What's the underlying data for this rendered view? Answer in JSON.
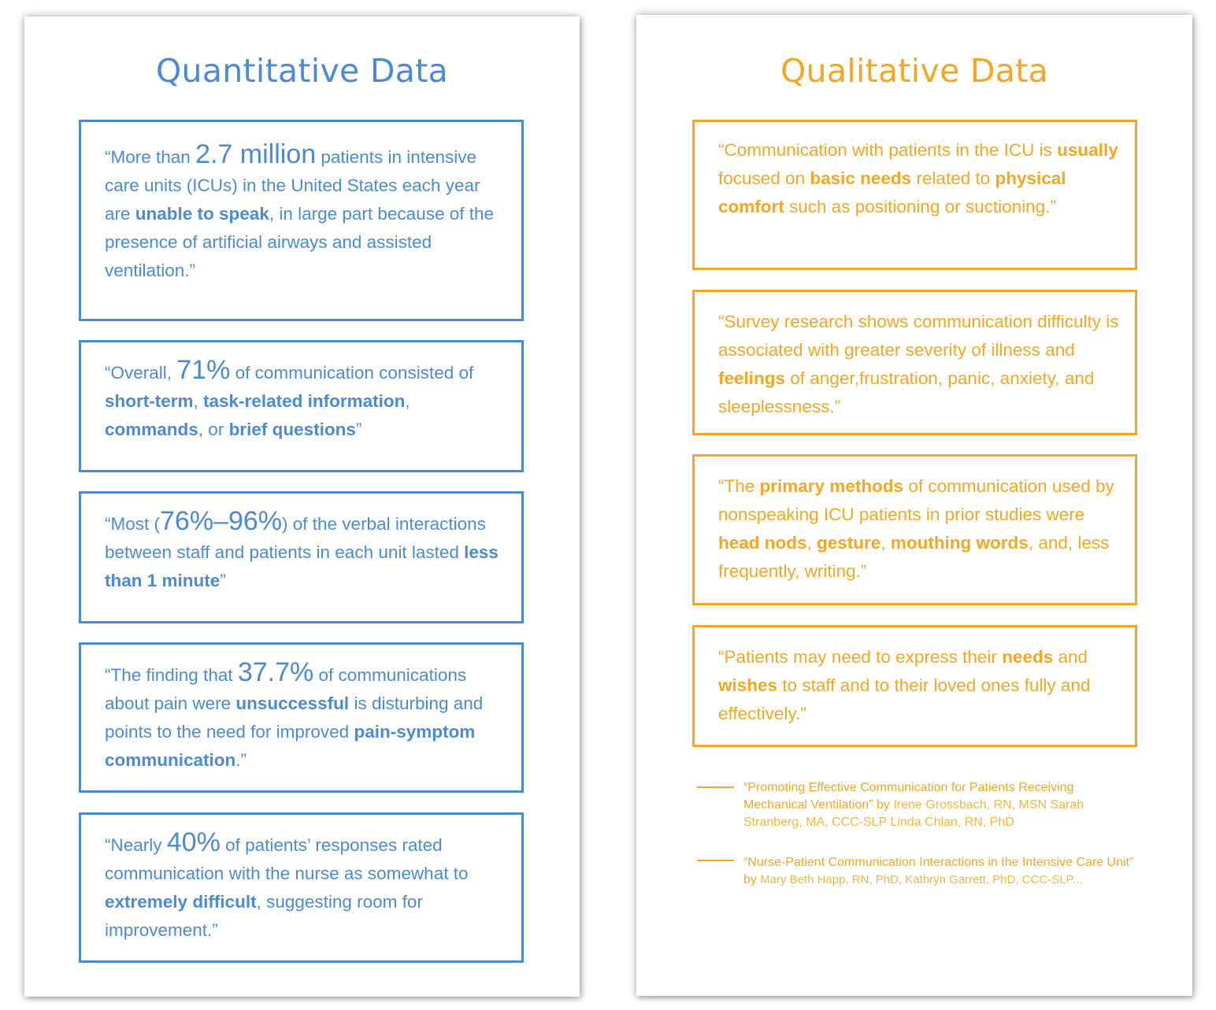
{
  "colors": {
    "blue": "#4a8ad6",
    "orange": "#f5a623"
  },
  "left": {
    "title": "Quantitative Data",
    "q1": {
      "a": "“More than ",
      "big": "2.7 million",
      "b": " patients in intensive care units (ICUs) in the United States each year are ",
      "bold1": "unable to speak",
      "c": ", in large part because of the presence of artificial airways and assisted ventilation.”"
    },
    "q2": {
      "a": "“Overall, ",
      "big": "71%",
      "b": " of communication consisted of ",
      "bold1": "short-term",
      "c": ", ",
      "bold2": "task-related information",
      "d": ", ",
      "bold3": "commands",
      "e": ", or ",
      "bold4": "brief questions",
      "f": "”"
    },
    "q3": {
      "a": "“Most (",
      "big": "76%–96%",
      "b": ") of the verbal interactions between staff and patients in each unit lasted ",
      "bold1": "less than 1 minute",
      "c": "”"
    },
    "q4": {
      "a": "“The finding that ",
      "big": "37.7%",
      "b": " of communications about pain were ",
      "bold1": "unsuccessful",
      "c": " is disturbing and points to the need for improved ",
      "bold2": "pain-symptom communication",
      "d": ".”"
    },
    "q5": {
      "a": "“Nearly ",
      "big": "40%",
      "b": " of patients’ responses rated communication with the nurse as somewhat to ",
      "bold1": "extremely difficult",
      "c": ", suggesting room for improvement.”"
    }
  },
  "right": {
    "title": "Qualitative Data",
    "r1": {
      "a": "“Communication with patients in the ICU is ",
      "bold1": "usually",
      "b": " focused on ",
      "bold2": "basic needs",
      "c": " related to ",
      "bold3": "physical comfort",
      "d": " such as positioning or suctioning.”"
    },
    "r2": {
      "a": "“Survey research shows communication difficulty is associated with greater severity of illness and ",
      "bold1": "feelings",
      "b": " of anger,frustration, panic, anxiety, and sleeplessness.”"
    },
    "r3": {
      "a": "“The ",
      "bold1": "primary methods",
      "b": " of communication used by nonspeaking ICU patients in prior studies were ",
      "bold2": "head nods",
      "c": ", ",
      "bold3": "gesture",
      "d": ", ",
      "bold4": "mouthing words",
      "e": ", and, less frequently, writing.”"
    },
    "r4": {
      "a": "“Patients may need to express their ",
      "bold1": "needs",
      "b": " and ",
      "bold2": "wishes",
      "c": " to staff and to their loved ones fully and effectively.”"
    }
  },
  "references": [
    {
      "title": "“Promoting Effective Communication for Patients Receiving Mechanical Ventilation” by",
      "authors": " Irene Grossbach, RN, MSN  Sarah Stranberg, MA, CCC-SLP   Linda Chlan, RN, PhD"
    },
    {
      "title": "“Nurse-Patient Communication Interactions in the Intensive Care Unit” by",
      "authors": " Mary Beth Happ, RN, PhD, Kathryn Garrett, PhD, CCC-SLP..."
    }
  ]
}
